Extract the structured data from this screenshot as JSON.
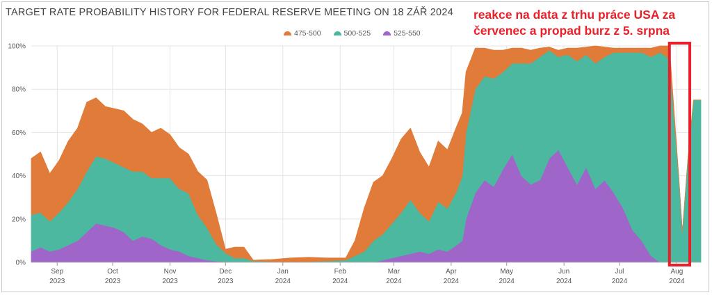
{
  "title": "TARGET RATE PROBABILITY HISTORY FOR FEDERAL RESERVE MEETING ON 18 ZÁŘ 2024",
  "annotation": {
    "line1": "reakce na data z trhu práce USA za",
    "line2": "červenec a propad burz z 5. srpna",
    "color": "#e8202a"
  },
  "colors": {
    "s475": "#e07b39",
    "s500": "#4cb8a0",
    "s525": "#a065c8",
    "grid": "#e4e4e4",
    "text": "#555555"
  },
  "chart_data": {
    "type": "area",
    "stacked": true,
    "title": "TARGET RATE PROBABILITY HISTORY FOR FEDERAL RESERVE MEETING ON 18 ZÁŘ 2024",
    "x_unit": "days from 2023-09-01",
    "ylim": [
      0,
      100
    ],
    "y_ticks": [
      "0%",
      "20%",
      "40%",
      "60%",
      "80%",
      "100%"
    ],
    "x_ticks": [
      {
        "month": "Sep",
        "year": "2023"
      },
      {
        "month": "Oct",
        "year": "2023"
      },
      {
        "month": "Nov",
        "year": "2023"
      },
      {
        "month": "Dec",
        "year": "2023"
      },
      {
        "month": "Jan",
        "year": "2024"
      },
      {
        "month": "Feb",
        "year": "2024"
      },
      {
        "month": "Mar",
        "year": "2024"
      },
      {
        "month": "Apr",
        "year": "2024"
      },
      {
        "month": "May",
        "year": "2024"
      },
      {
        "month": "Jun",
        "year": "2024"
      },
      {
        "month": "Jul",
        "year": "2024"
      },
      {
        "month": "Aug",
        "year": "2024"
      }
    ],
    "x_tick_days": [
      14,
      44,
      75,
      105,
      136,
      167,
      196,
      227,
      257,
      288,
      318,
      349
    ],
    "x_range": [
      0,
      362
    ],
    "legend": [
      "475-500",
      "500-525",
      "525-550"
    ],
    "legend_position": "top-center",
    "highlight": {
      "x_start": 345,
      "x_end": 356
    },
    "series": [
      {
        "name": "525-550",
        "x": [
          0,
          5,
          10,
          15,
          20,
          25,
          30,
          35,
          40,
          45,
          50,
          55,
          60,
          65,
          70,
          75,
          80,
          85,
          90,
          95,
          100,
          105,
          110,
          115,
          120,
          130,
          140,
          150,
          160,
          170,
          175,
          180,
          185,
          190,
          195,
          200,
          205,
          210,
          215,
          220,
          225,
          230,
          233,
          235,
          240,
          245,
          250,
          255,
          260,
          265,
          270,
          275,
          280,
          285,
          290,
          295,
          300,
          305,
          310,
          315,
          320,
          325,
          330,
          335,
          340,
          345,
          350,
          352,
          355,
          358,
          362
        ],
        "y": [
          5,
          7,
          5,
          6,
          8,
          10,
          14,
          18,
          17,
          16,
          14,
          10,
          12,
          11,
          8,
          6,
          5,
          3,
          2,
          1,
          0.5,
          0.3,
          0,
          0,
          0,
          0,
          0,
          0,
          0,
          0,
          0,
          0,
          0,
          1,
          2,
          3,
          4,
          5,
          4,
          6,
          5,
          8,
          10,
          20,
          32,
          38,
          35,
          43,
          50,
          40,
          36,
          38,
          48,
          52,
          44,
          36,
          44,
          34,
          38,
          32,
          25,
          15,
          10,
          3,
          0,
          0,
          0,
          0,
          0,
          0,
          0
        ]
      },
      {
        "name": "500-525",
        "x": [
          0,
          5,
          10,
          15,
          20,
          25,
          30,
          35,
          40,
          45,
          50,
          55,
          60,
          65,
          70,
          75,
          80,
          85,
          90,
          95,
          100,
          105,
          110,
          115,
          120,
          130,
          140,
          150,
          160,
          170,
          175,
          180,
          185,
          190,
          195,
          200,
          205,
          210,
          215,
          220,
          225,
          230,
          233,
          235,
          240,
          245,
          250,
          255,
          260,
          265,
          270,
          275,
          280,
          285,
          290,
          295,
          300,
          305,
          310,
          315,
          320,
          325,
          330,
          335,
          340,
          345,
          350,
          352,
          355,
          358,
          362
        ],
        "y": [
          17,
          16,
          14,
          17,
          20,
          24,
          28,
          31,
          31,
          30,
          30,
          32,
          30,
          28,
          31,
          33,
          29,
          29,
          20,
          15,
          8,
          4,
          2,
          2,
          0.6,
          0.3,
          0,
          0.3,
          0.6,
          1,
          3,
          5,
          10,
          12,
          16,
          20,
          25,
          18,
          15,
          22,
          20,
          25,
          30,
          40,
          48,
          48,
          50,
          45,
          42,
          52,
          56,
          57,
          50,
          43,
          52,
          57,
          52,
          58,
          57,
          65,
          72,
          82,
          87,
          92,
          97,
          94,
          40,
          14,
          48,
          75,
          75
        ]
      },
      {
        "name": "475-500",
        "x": [
          0,
          5,
          10,
          15,
          20,
          25,
          30,
          35,
          40,
          45,
          50,
          55,
          60,
          65,
          70,
          75,
          80,
          85,
          90,
          95,
          100,
          105,
          110,
          115,
          120,
          130,
          140,
          150,
          160,
          170,
          175,
          180,
          185,
          190,
          195,
          200,
          205,
          210,
          215,
          220,
          225,
          230,
          233,
          235,
          240,
          245,
          250,
          255,
          260,
          265,
          270,
          275,
          280,
          285,
          290,
          295,
          300,
          305,
          310,
          315,
          320,
          325,
          330,
          335,
          340,
          345,
          350,
          352,
          355,
          358,
          362
        ],
        "y": [
          26,
          28,
          22,
          24,
          28,
          28,
          32,
          27,
          24,
          25,
          26,
          24,
          22,
          21,
          23,
          20,
          19,
          18,
          20,
          22,
          14,
          1.7,
          5,
          5,
          0.4,
          1,
          2,
          2,
          1.4,
          1,
          7,
          20,
          27,
          27,
          30,
          34,
          33,
          28,
          25,
          28,
          27,
          30,
          29,
          28,
          19,
          13,
          13,
          10,
          7,
          7,
          6,
          4,
          1.5,
          3,
          3,
          6,
          3.5,
          8,
          4.5,
          2,
          2,
          2,
          2,
          4,
          3,
          6,
          0,
          0,
          0,
          0,
          0
        ]
      }
    ]
  }
}
